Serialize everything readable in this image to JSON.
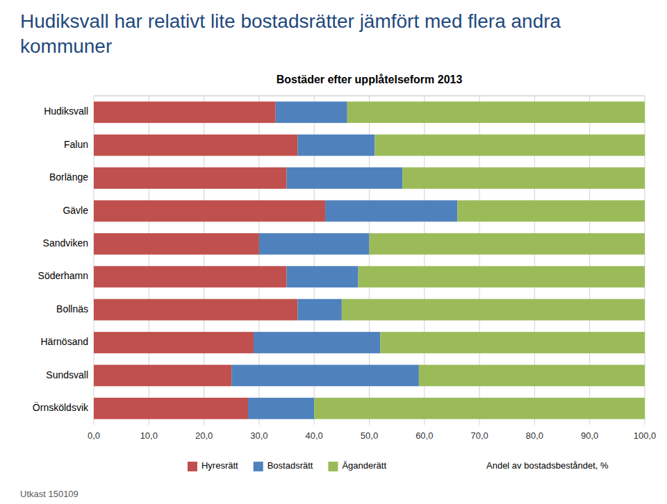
{
  "chart_data": {
    "type": "bar",
    "orientation": "horizontal",
    "stacked": true,
    "title": "Hudiksvall har relativt lite bostadsrätter jämfört med flera andra kommuner",
    "subtitle": "Bostäder efter upplåtelseform 2013",
    "xlabel": "Andel av bostadsbeståndet, %",
    "annotations": [
      {
        "text": "Utkast 150109"
      }
    ],
    "categories": [
      "Hudiksvall",
      "Falun",
      "Borlänge",
      "Gävle",
      "Sandviken",
      "Söderhamn",
      "Bollnäs",
      "Härnösand",
      "Sundsvall",
      "Örnsköldsvik"
    ],
    "series": [
      {
        "name": "Hyresrätt",
        "color": "#C0504D",
        "values": [
          33.0,
          37.0,
          35.0,
          42.0,
          30.0,
          35.0,
          37.0,
          29.0,
          25.0,
          28.0
        ]
      },
      {
        "name": "Bostadsrätt",
        "color": "#4F81BD",
        "values": [
          13.0,
          14.0,
          21.0,
          24.0,
          20.0,
          13.0,
          8.0,
          23.0,
          34.0,
          12.0
        ]
      },
      {
        "name": "Äganderätt",
        "color": "#9BBB59",
        "values": [
          54.0,
          49.0,
          44.0,
          34.0,
          50.0,
          52.0,
          55.0,
          48.0,
          41.0,
          60.0
        ]
      }
    ],
    "xlim": [
      0,
      100
    ],
    "xticks": [
      {
        "value": 0,
        "label": "0,0"
      },
      {
        "value": 10,
        "label": "10,0"
      },
      {
        "value": 20,
        "label": "20,0"
      },
      {
        "value": 30,
        "label": "30,0"
      },
      {
        "value": 40,
        "label": "40,0"
      },
      {
        "value": 50,
        "label": "50,0"
      },
      {
        "value": 60,
        "label": "60,0"
      },
      {
        "value": 70,
        "label": "70,0"
      },
      {
        "value": 80,
        "label": "80,0"
      },
      {
        "value": 90,
        "label": "90,0"
      },
      {
        "value": 100,
        "label": "100,0"
      }
    ],
    "grid": true,
    "legend": "bottom"
  }
}
